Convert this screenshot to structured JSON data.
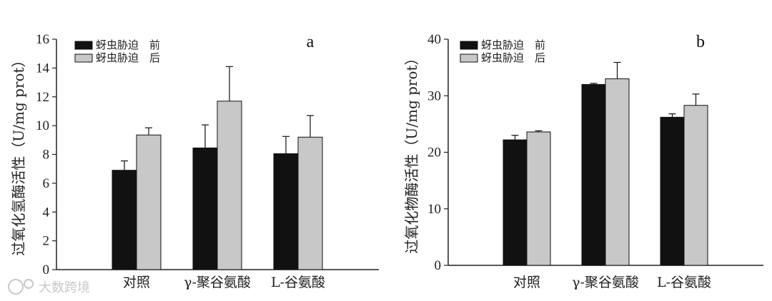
{
  "colors": {
    "before": "#111111",
    "after": "#c8c8c8",
    "axis": "#222222",
    "watermark": "#c8c8c8"
  },
  "watermark": "大数跨境",
  "chart_data": [
    {
      "type": "bar",
      "panel_label": "a",
      "ylabel": "过氧化氢酶活性（U/mg prot）",
      "ylim": [
        0,
        16
      ],
      "yticks": [
        0,
        2,
        4,
        6,
        8,
        10,
        12,
        14,
        16
      ],
      "categories": [
        "对照",
        "γ-聚谷氨酸",
        "L-谷氨酸"
      ],
      "series": [
        {
          "name": "蚜虫胁迫　前",
          "values": [
            6.9,
            8.45,
            8.05
          ],
          "errors": [
            0.65,
            1.6,
            1.2
          ]
        },
        {
          "name": "蚜虫胁迫　后",
          "values": [
            9.35,
            11.7,
            9.2
          ],
          "errors": [
            0.5,
            2.4,
            1.5
          ]
        }
      ],
      "legend": "top-left"
    },
    {
      "type": "bar",
      "panel_label": "b",
      "ylabel": "过氧化物酶活性（U/mg prot）",
      "ylim": [
        0,
        40
      ],
      "yticks": [
        0,
        10,
        20,
        30,
        40
      ],
      "categories": [
        "对照",
        "γ-聚谷氨酸",
        "L-谷氨酸"
      ],
      "series": [
        {
          "name": "蚜虫胁迫　前",
          "values": [
            22.2,
            32.0,
            26.2
          ],
          "errors": [
            0.8,
            0.2,
            0.6
          ]
        },
        {
          "name": "蚜虫胁迫　后",
          "values": [
            23.6,
            33.0,
            28.3
          ],
          "errors": [
            0.2,
            2.9,
            2.0
          ]
        }
      ],
      "legend": "top-left"
    }
  ]
}
